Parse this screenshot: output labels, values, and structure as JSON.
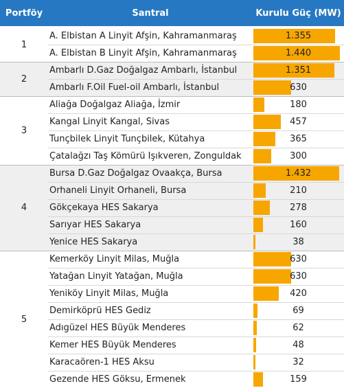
{
  "table": {
    "header": [
      "Portföy",
      "Santral",
      "Kurulu Güç (MW)"
    ],
    "groups": [
      {
        "portfolio": "1",
        "rows": [
          {
            "plant": "A. Elbistan A Linyit Afşin, Kahramanmaraş",
            "value": 1355,
            "value_label": "1.355"
          },
          {
            "plant": "A. Elbistan B Linyit Afşin, Kahramanmaraş",
            "value": 1440,
            "value_label": "1.440"
          }
        ]
      },
      {
        "portfolio": "2",
        "rows": [
          {
            "plant": "Ambarlı D.Gaz Doğalgaz Ambarlı, İstanbul",
            "value": 1351,
            "value_label": "1.351"
          },
          {
            "plant": "Ambarlı F.Oil Fuel-oil Ambarlı, İstanbul",
            "value": 630
          }
        ]
      },
      {
        "portfolio": "3",
        "rows": [
          {
            "plant": "Aliağa Doğalgaz Aliağa, İzmir",
            "value": 180
          },
          {
            "plant": "Kangal Linyit Kangal, Sivas",
            "value": 457
          },
          {
            "plant": "Tunçbilek Linyit Tunçbilek, Kütahya",
            "value": 365
          },
          {
            "plant": "Çatalağzı Taş Kömürü Işıkveren, Zonguldak",
            "value": 300
          }
        ]
      },
      {
        "portfolio": "4",
        "rows": [
          {
            "plant": "Bursa D.Gaz Doğalgaz Ovaakça, Bursa",
            "value": 1432,
            "value_label": "1.432"
          },
          {
            "plant": "Orhaneli Linyit Orhaneli, Bursa",
            "value": 210
          },
          {
            "plant": "Gökçekaya HES Sakarya",
            "value": 278
          },
          {
            "plant": "Sarıyar HES Sakarya",
            "value": 160
          },
          {
            "plant": "Yenice HES Sakarya",
            "value": 38
          }
        ]
      },
      {
        "portfolio": "5",
        "rows": [
          {
            "plant": "Kemerköy Linyit Milas, Muğla",
            "value": 630
          },
          {
            "plant": "Yatağan Linyit Yatağan, Muğla",
            "value": 630
          },
          {
            "plant": "Yeniköy Linyit Milas, Muğla",
            "value": 420
          },
          {
            "plant": "Demirköprü HES Gediz",
            "value": 69
          },
          {
            "plant": "Adıgüzel HES Büyük Menderes",
            "value": 62
          },
          {
            "plant": "Kemer HES Büyük Menderes",
            "value": 48
          },
          {
            "plant": "Karacaören-1 HES Aksu",
            "value": 32
          },
          {
            "plant": "Gezende HES Göksu, Ermenek",
            "value": 159
          }
        ]
      }
    ]
  }
}
